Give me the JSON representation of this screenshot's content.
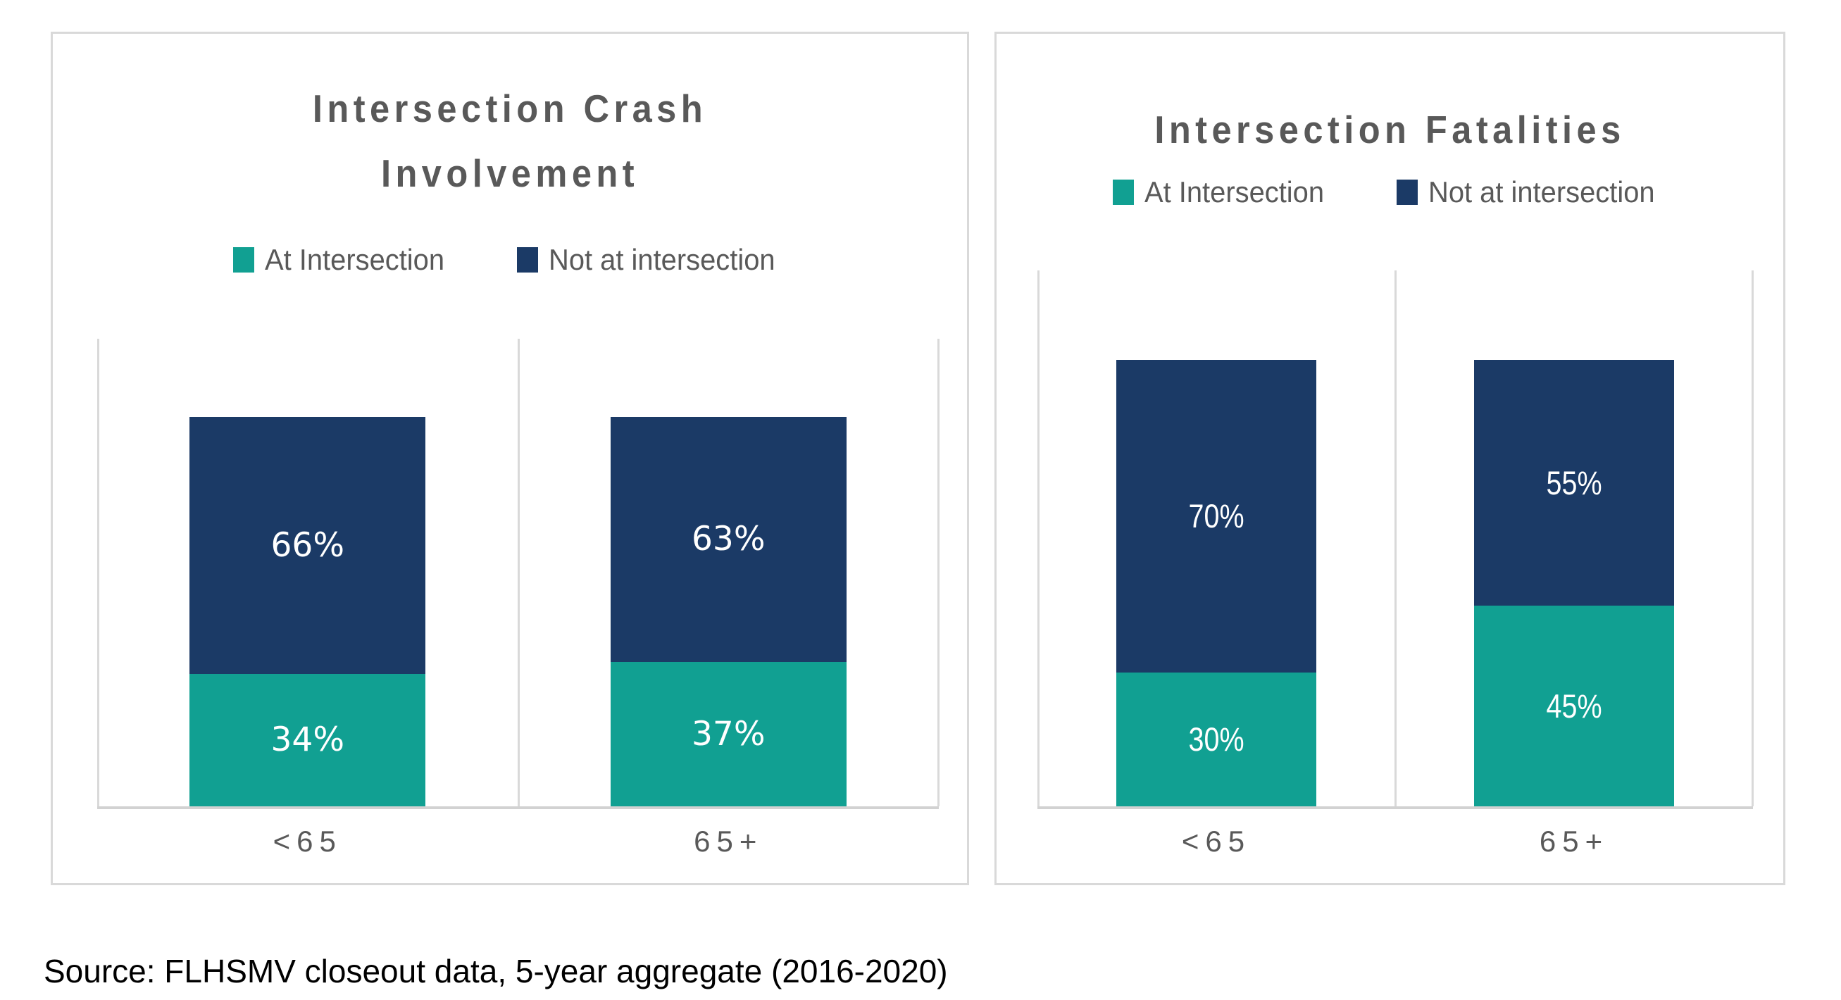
{
  "source_note": "Source: FLHSMV closeout data, 5-year aggregate (2016-2020)",
  "colors": {
    "at_intersection": "#11A092",
    "not_at_intersection": "#1B3A66",
    "heading_text": "#595959",
    "gridline": "#D9D9D9",
    "axis_line": "#D2D2D2",
    "bar_label_text": "#FFFFFF",
    "card_border": "#D9D9D9",
    "background": "#FFFFFF"
  },
  "chart_data": [
    {
      "type": "bar",
      "subtype": "stacked-100-percent-column",
      "title": "Intersection Crash Involvement",
      "title_lines": [
        "Intersection Crash",
        "Involvement"
      ],
      "categories": [
        "<65",
        "65+"
      ],
      "series": [
        {
          "name": "At Intersection",
          "color": "#11A092",
          "values": [
            34,
            37
          ],
          "labels": [
            "34%",
            "37%"
          ]
        },
        {
          "name": "Not at intersection",
          "color": "#1B3A66",
          "values": [
            66,
            63
          ],
          "labels": [
            "66%",
            "63%"
          ]
        }
      ],
      "value_format": "percent",
      "ylim": [
        0,
        120
      ],
      "xlabel": "",
      "ylabel": "",
      "grid": "vertical-category-separators",
      "legend_position": "top"
    },
    {
      "type": "bar",
      "subtype": "stacked-100-percent-column",
      "title": "Intersection Fatalities",
      "title_lines": [
        "Intersection Fatalities"
      ],
      "categories": [
        "<65",
        "65+"
      ],
      "series": [
        {
          "name": "At Intersection",
          "color": "#11A092",
          "values": [
            30,
            45
          ],
          "labels": [
            "30%",
            "45%"
          ]
        },
        {
          "name": "Not at intersection",
          "color": "#1B3A66",
          "values": [
            70,
            55
          ],
          "labels": [
            "70%",
            "55%"
          ]
        }
      ],
      "value_format": "percent",
      "ylim": [
        0,
        120
      ],
      "xlabel": "",
      "ylabel": "",
      "grid": "vertical-category-separators",
      "legend_position": "top"
    }
  ]
}
